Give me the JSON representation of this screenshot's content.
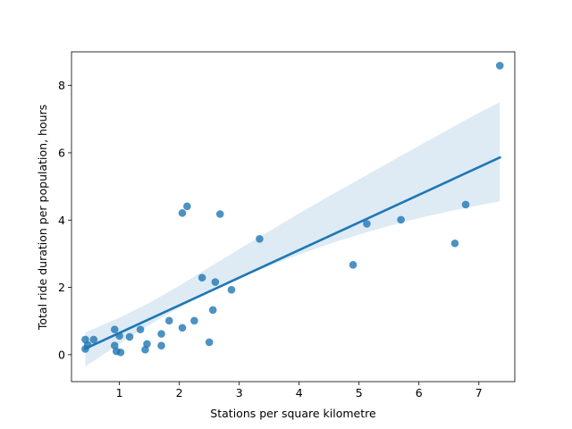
{
  "chart_data": {
    "type": "scatter",
    "title": "",
    "xlabel": "Stations per square kilometre",
    "ylabel": "Total ride duration per population, hours",
    "xlim": [
      0.2,
      7.6
    ],
    "ylim": [
      -0.8,
      9.0
    ],
    "xticks": [
      1,
      2,
      3,
      4,
      5,
      6,
      7
    ],
    "yticks": [
      0,
      2,
      4,
      6,
      8
    ],
    "grid": false,
    "colors": {
      "points": "#1f77b4",
      "line": "#1f77b4",
      "band": "#1f77b4"
    },
    "points": [
      {
        "x": 0.43,
        "y": 0.45
      },
      {
        "x": 0.43,
        "y": 0.17
      },
      {
        "x": 0.47,
        "y": 0.29
      },
      {
        "x": 0.57,
        "y": 0.45
      },
      {
        "x": 0.92,
        "y": 0.75
      },
      {
        "x": 0.92,
        "y": 0.27
      },
      {
        "x": 0.95,
        "y": 0.1
      },
      {
        "x": 1.0,
        "y": 0.56
      },
      {
        "x": 1.02,
        "y": 0.07
      },
      {
        "x": 1.17,
        "y": 0.53
      },
      {
        "x": 1.35,
        "y": 0.75
      },
      {
        "x": 1.43,
        "y": 0.15
      },
      {
        "x": 1.46,
        "y": 0.32
      },
      {
        "x": 1.7,
        "y": 0.62
      },
      {
        "x": 1.7,
        "y": 0.27
      },
      {
        "x": 1.83,
        "y": 1.01
      },
      {
        "x": 2.05,
        "y": 0.8
      },
      {
        "x": 2.05,
        "y": 4.21
      },
      {
        "x": 2.13,
        "y": 4.41
      },
      {
        "x": 2.25,
        "y": 1.01
      },
      {
        "x": 2.38,
        "y": 2.29
      },
      {
        "x": 2.5,
        "y": 0.37
      },
      {
        "x": 2.56,
        "y": 1.33
      },
      {
        "x": 2.6,
        "y": 2.16
      },
      {
        "x": 2.68,
        "y": 4.18
      },
      {
        "x": 2.87,
        "y": 1.93
      },
      {
        "x": 3.34,
        "y": 3.44
      },
      {
        "x": 4.9,
        "y": 2.67
      },
      {
        "x": 5.13,
        "y": 3.89
      },
      {
        "x": 5.7,
        "y": 4.01
      },
      {
        "x": 6.6,
        "y": 3.31
      },
      {
        "x": 6.78,
        "y": 4.46
      },
      {
        "x": 7.35,
        "y": 8.59
      }
    ],
    "regression": {
      "x_start": 0.43,
      "x_end": 7.35,
      "y_start": 0.18,
      "y_end": 5.86
    },
    "confidence_band": {
      "x": [
        0.43,
        1.0,
        1.5,
        2.0,
        2.5,
        3.0,
        3.5,
        4.0,
        4.5,
        5.0,
        5.5,
        6.0,
        6.5,
        7.0,
        7.35
      ],
      "lower": [
        -0.35,
        0.32,
        0.89,
        1.4,
        1.86,
        2.27,
        2.64,
        2.98,
        3.29,
        3.57,
        3.83,
        4.06,
        4.26,
        4.44,
        4.56
      ],
      "upper": [
        0.66,
        1.1,
        1.54,
        2.05,
        2.6,
        3.14,
        3.67,
        4.2,
        4.71,
        5.21,
        5.71,
        6.21,
        6.7,
        7.19,
        7.5
      ]
    }
  }
}
